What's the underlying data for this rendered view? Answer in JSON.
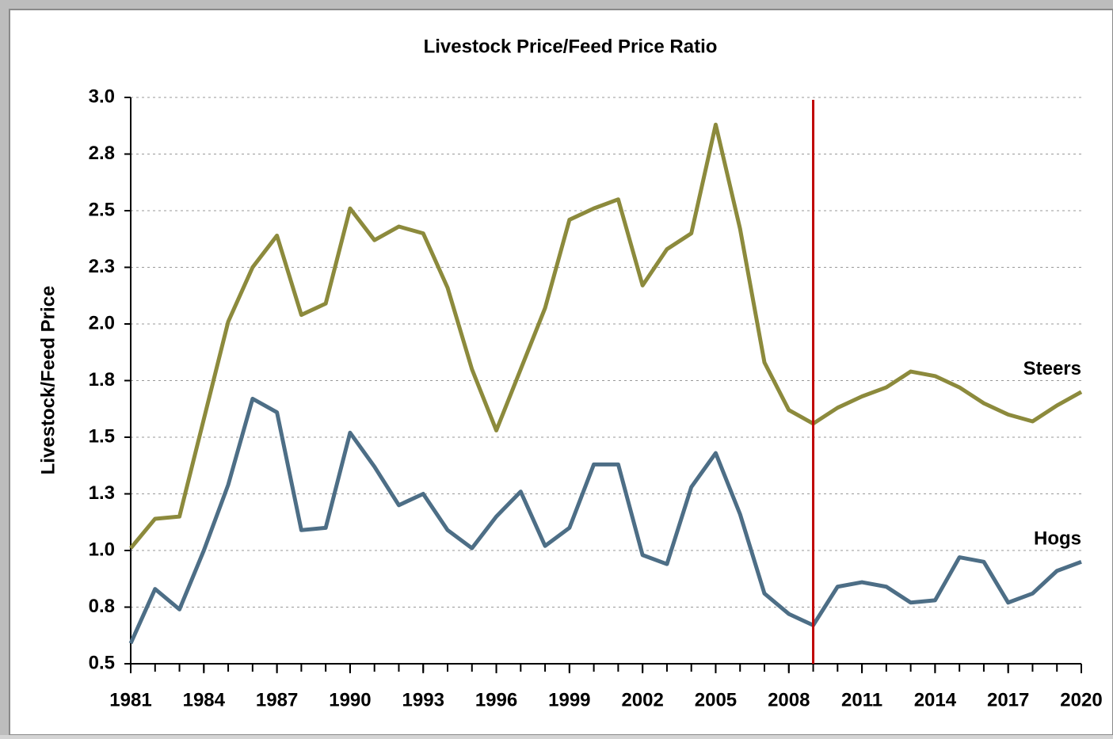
{
  "chart_data": {
    "type": "line",
    "title": "Livestock Price/Feed Price Ratio",
    "ylabel": "Livestock/Feed Price",
    "x": [
      1981,
      1982,
      1983,
      1984,
      1985,
      1986,
      1987,
      1988,
      1989,
      1990,
      1991,
      1992,
      1993,
      1994,
      1995,
      1996,
      1997,
      1998,
      1999,
      2000,
      2001,
      2002,
      2003,
      2004,
      2005,
      2006,
      2007,
      2008,
      2009,
      2010,
      2011,
      2012,
      2013,
      2014,
      2015,
      2016,
      2017,
      2018,
      2019,
      2020
    ],
    "series": [
      {
        "name": "Steers",
        "color": "#8c8a3c",
        "values": [
          1.01,
          1.14,
          1.15,
          1.58,
          2.01,
          2.25,
          2.39,
          2.04,
          2.09,
          2.51,
          2.37,
          2.43,
          2.4,
          2.16,
          1.8,
          1.53,
          1.8,
          2.07,
          2.46,
          2.51,
          2.55,
          2.17,
          2.33,
          2.4,
          2.88,
          2.42,
          1.83,
          1.62,
          1.56,
          1.63,
          1.68,
          1.72,
          1.79,
          1.77,
          1.72,
          1.65,
          1.6,
          1.57,
          1.64,
          1.7
        ]
      },
      {
        "name": "Hogs",
        "color": "#4d6e86",
        "values": [
          0.59,
          0.83,
          0.74,
          1.0,
          1.29,
          1.67,
          1.61,
          1.09,
          1.1,
          1.52,
          1.37,
          1.2,
          1.25,
          1.09,
          1.01,
          1.15,
          1.26,
          1.02,
          1.1,
          1.38,
          1.38,
          0.98,
          0.94,
          1.28,
          1.43,
          1.16,
          0.81,
          0.72,
          0.67,
          0.84,
          0.86,
          0.84,
          0.77,
          0.78,
          0.97,
          0.95,
          0.77,
          0.81,
          0.91,
          0.95
        ]
      }
    ],
    "xlim": [
      1981,
      2020
    ],
    "xticks": [
      1981,
      1984,
      1987,
      1990,
      1993,
      1996,
      1999,
      2002,
      2005,
      2008,
      2011,
      2014,
      2017,
      2020
    ],
    "ylim": [
      0.5,
      3.0
    ],
    "yticks": [
      0.5,
      {
        "value": 0.75,
        "label": "0.8"
      },
      {
        "value": 1.0,
        "label": "1.0"
      },
      {
        "value": 1.25,
        "label": "1.3"
      },
      1.5,
      {
        "value": 1.75,
        "label": "1.8"
      },
      {
        "value": 2.0,
        "label": "2.0"
      },
      {
        "value": 2.25,
        "label": "2.3"
      },
      2.5,
      {
        "value": 2.75,
        "label": "2.8"
      },
      {
        "value": 3.0,
        "label": "3.0"
      }
    ],
    "grid": true,
    "reference_line": {
      "x": 2009,
      "color": "#c00000"
    }
  }
}
